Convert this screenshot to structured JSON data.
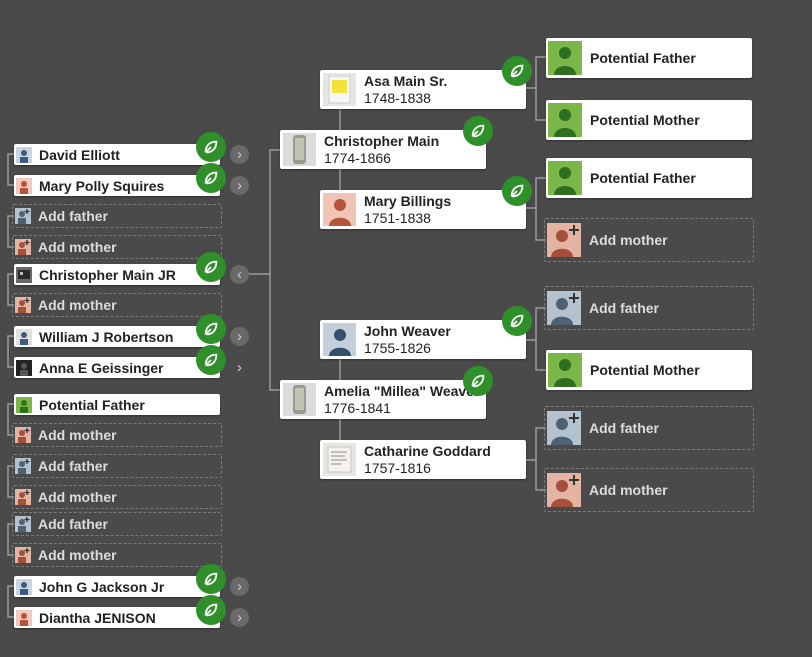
{
  "left_column": [
    {
      "name": "David Elliott",
      "type": "person"
    },
    {
      "name": "Mary Polly Squires",
      "type": "person"
    },
    {
      "name": "Add father",
      "type": "add"
    },
    {
      "name": "Add mother",
      "type": "add"
    },
    {
      "name": "Christopher Main JR",
      "type": "person"
    },
    {
      "name": "Add mother",
      "type": "add"
    },
    {
      "name": "William J Robertson",
      "type": "person"
    },
    {
      "name": "Anna E Geissinger",
      "type": "person"
    },
    {
      "name": "Potential Father",
      "type": "potential"
    },
    {
      "name": "Add mother",
      "type": "add"
    },
    {
      "name": "Add father",
      "type": "add"
    },
    {
      "name": "Add mother",
      "type": "add"
    },
    {
      "name": "Add father",
      "type": "add"
    },
    {
      "name": "Add mother",
      "type": "add"
    },
    {
      "name": "John G Jackson Jr",
      "type": "person"
    },
    {
      "name": "Diantha JENISON",
      "type": "person"
    }
  ],
  "middle_column": [
    {
      "name": "Asa Main Sr.",
      "dates": "1748-1838"
    },
    {
      "name": "Christopher Main",
      "dates": "1774-1866"
    },
    {
      "name": "Mary Billings",
      "dates": "1751-1838"
    },
    {
      "name": "John Weaver",
      "dates": "1755-1826"
    },
    {
      "name": "Amelia \"Millea\" Weaver",
      "dates": "1776-1841"
    },
    {
      "name": "Catharine Goddard",
      "dates": "1757-1816"
    }
  ],
  "right_column": [
    {
      "name": "Potential Father",
      "type": "potential"
    },
    {
      "name": "Potential Mother",
      "type": "potential"
    },
    {
      "name": "Potential Father",
      "type": "potential"
    },
    {
      "name": "Add mother",
      "type": "add"
    },
    {
      "name": "Add father",
      "type": "add"
    },
    {
      "name": "Potential Mother",
      "type": "potential"
    },
    {
      "name": "Add father",
      "type": "add"
    },
    {
      "name": "Add mother",
      "type": "add"
    }
  ],
  "colors": {
    "background": "#4a4a4a",
    "hint_green": "#2f8f2a",
    "potential_green": "#7ab648",
    "male_avatar": "#8aa0b3",
    "female_avatar": "#e1a593"
  },
  "icons": {
    "hint": "leaf-icon",
    "expand": "chevron-right-icon",
    "collapse": "chevron-left-icon",
    "add_person": "person-plus-icon"
  }
}
